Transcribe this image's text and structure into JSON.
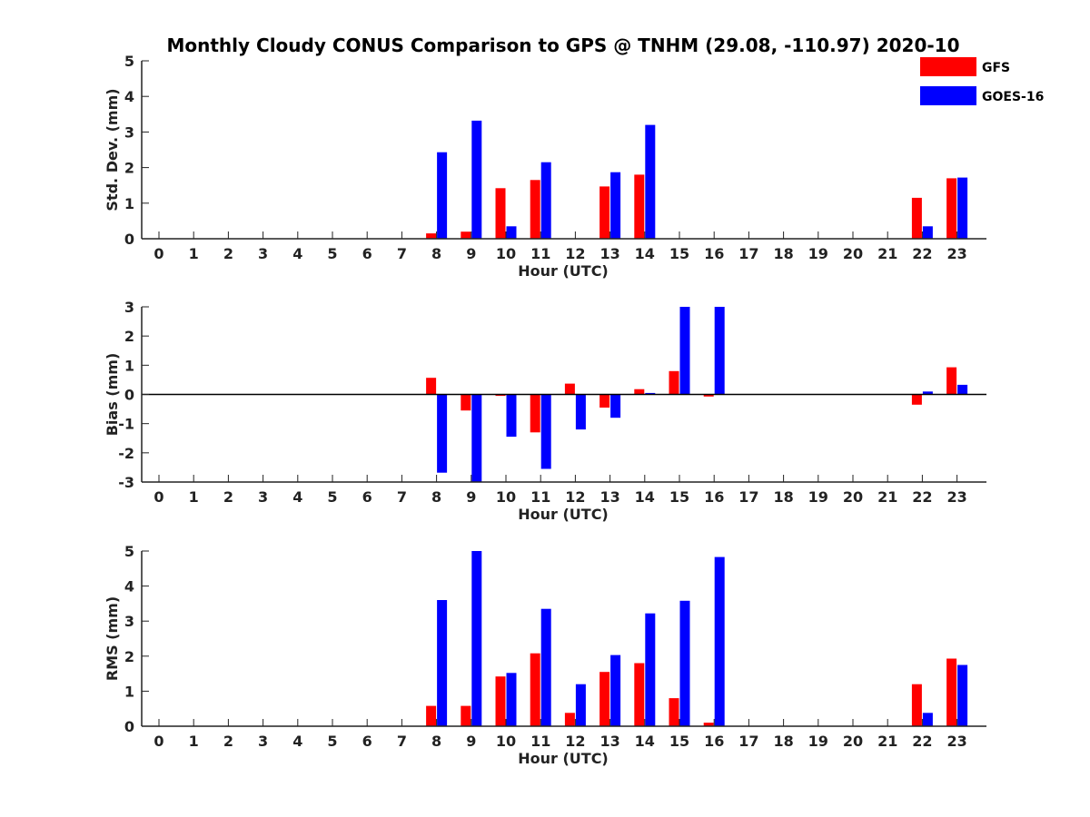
{
  "chart_data": {
    "type": "bar",
    "title": "Monthly Cloudy CONUS Comparison to GPS @ TNHM (29.08, -110.97) 2020-10",
    "categories": [
      "0",
      "1",
      "2",
      "3",
      "4",
      "5",
      "6",
      "7",
      "8",
      "9",
      "10",
      "11",
      "12",
      "13",
      "14",
      "15",
      "16",
      "17",
      "18",
      "19",
      "20",
      "21",
      "22",
      "23"
    ],
    "legend": {
      "placement": "top-right",
      "entries": [
        {
          "name": "GFS",
          "color": "#ff0000"
        },
        {
          "name": "GOES-16",
          "color": "#0000ff"
        }
      ]
    },
    "panels": [
      {
        "ylabel": "Std. Dev. (mm)",
        "xlabel": "Hour (UTC)",
        "ylim": [
          0,
          5
        ],
        "yticks": [
          "0",
          "1",
          "2",
          "3",
          "4",
          "5"
        ],
        "series": [
          {
            "name": "GFS",
            "values": [
              0,
              0,
              0,
              0,
              0,
              0,
              0,
              0,
              0.15,
              0.2,
              1.42,
              1.65,
              0,
              1.47,
              1.8,
              0,
              0,
              0,
              0,
              0,
              0,
              0,
              1.15,
              1.7
            ]
          },
          {
            "name": "GOES-16",
            "values": [
              0,
              0,
              0,
              0,
              0,
              0,
              0,
              0,
              2.43,
              3.32,
              0.35,
              2.15,
              0,
              1.87,
              3.2,
              0,
              0,
              0,
              0,
              0,
              0,
              0,
              0.35,
              1.72
            ]
          }
        ]
      },
      {
        "ylabel": "Bias (mm)",
        "xlabel": "Hour (UTC)",
        "ylim": [
          -3,
          3
        ],
        "yticks": [
          "-3",
          "-2",
          "-1",
          "0",
          "1",
          "2",
          "3"
        ],
        "zero_line": true,
        "series": [
          {
            "name": "GFS",
            "values": [
              0,
              0,
              0,
              0,
              0,
              0,
              0,
              0,
              0.57,
              -0.55,
              -0.05,
              -1.3,
              0.37,
              -0.45,
              0.18,
              0.8,
              -0.07,
              0,
              0,
              0,
              0,
              0,
              -0.35,
              0.93
            ]
          },
          {
            "name": "GOES-16",
            "values": [
              0,
              0,
              0,
              0,
              0,
              0,
              0,
              0,
              -2.68,
              -3.0,
              -1.45,
              -2.55,
              -1.2,
              -0.8,
              0.05,
              3.0,
              3.0,
              0,
              0,
              0,
              0,
              0,
              0.1,
              0.33
            ]
          }
        ]
      },
      {
        "ylabel": "RMS (mm)",
        "xlabel": "Hour (UTC)",
        "ylim": [
          0,
          5
        ],
        "yticks": [
          "0",
          "1",
          "2",
          "3",
          "4",
          "5"
        ],
        "series": [
          {
            "name": "GFS",
            "values": [
              0,
              0,
              0,
              0,
              0,
              0,
              0,
              0,
              0.58,
              0.58,
              1.42,
              2.08,
              0.38,
              1.55,
              1.8,
              0.8,
              0.1,
              0,
              0,
              0,
              0,
              0,
              1.2,
              1.93
            ]
          },
          {
            "name": "GOES-16",
            "values": [
              0,
              0,
              0,
              0,
              0,
              0,
              0,
              0,
              3.6,
              5.0,
              1.52,
              3.35,
              1.2,
              2.03,
              3.22,
              3.58,
              4.83,
              0,
              0,
              0,
              0,
              0,
              0.38,
              1.75
            ]
          }
        ]
      }
    ]
  }
}
